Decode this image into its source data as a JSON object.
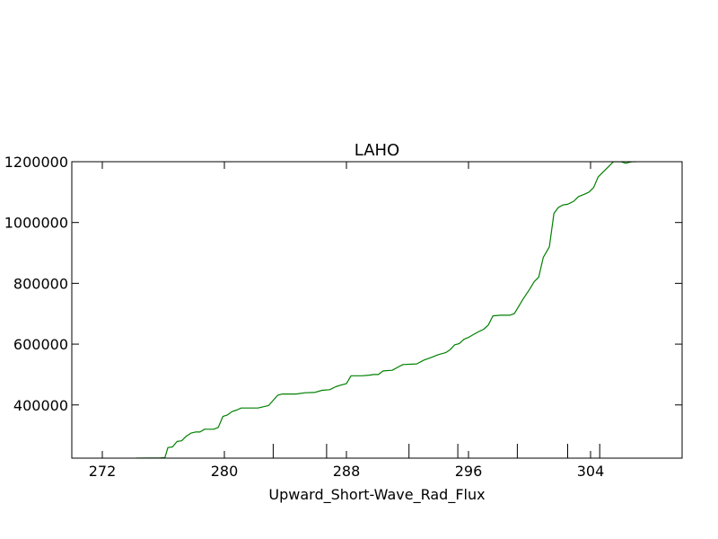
{
  "chart_data": {
    "type": "line",
    "title": "LAHO",
    "xlabel": "Upward_Short-Wave_Rad_Flux",
    "ylabel": "",
    "xlim": [
      270,
      310
    ],
    "ylim": [
      225000,
      1200000
    ],
    "x_ticks": [
      272,
      280,
      288,
      296,
      304
    ],
    "x_tick_labels": [
      "272",
      "280",
      "288",
      "296",
      "304"
    ],
    "x_minor_ticks": [
      283.2,
      286.7,
      292.1,
      295.3,
      299.2,
      302.5,
      304.6
    ],
    "y_ticks": [
      400000,
      600000,
      800000,
      1000000,
      1200000
    ],
    "y_tick_labels": [
      "400000",
      "600000",
      "800000",
      "1000000",
      "1200000"
    ],
    "grid": false,
    "series": [
      {
        "color": "#008000",
        "points": [
          [
            274.2,
            225000
          ],
          [
            275.0,
            225500
          ],
          [
            275.8,
            226000
          ],
          [
            276.1,
            226500
          ],
          [
            276.3,
            260000
          ],
          [
            276.6,
            262000
          ],
          [
            276.9,
            280000
          ],
          [
            277.2,
            282000
          ],
          [
            277.5,
            297000
          ],
          [
            277.8,
            307000
          ],
          [
            278.1,
            311000
          ],
          [
            278.4,
            311000
          ],
          [
            278.7,
            320000
          ],
          [
            279.3,
            320000
          ],
          [
            279.6,
            326000
          ],
          [
            279.9,
            362000
          ],
          [
            280.2,
            367000
          ],
          [
            280.5,
            378000
          ],
          [
            280.8,
            383000
          ],
          [
            281.1,
            390000
          ],
          [
            281.7,
            390000
          ],
          [
            282.2,
            390000
          ],
          [
            282.9,
            398000
          ],
          [
            283.5,
            432000
          ],
          [
            283.8,
            436000
          ],
          [
            284.7,
            436000
          ],
          [
            285.3,
            440000
          ],
          [
            285.9,
            441000
          ],
          [
            286.4,
            448000
          ],
          [
            286.9,
            450000
          ],
          [
            287.3,
            460000
          ],
          [
            287.6,
            465000
          ],
          [
            288.0,
            470000
          ],
          [
            288.3,
            496000
          ],
          [
            289.0,
            496000
          ],
          [
            289.5,
            498000
          ],
          [
            289.8,
            500000
          ],
          [
            290.1,
            500000
          ],
          [
            290.4,
            512000
          ],
          [
            291.0,
            514000
          ],
          [
            291.4,
            525000
          ],
          [
            291.7,
            533000
          ],
          [
            292.6,
            535000
          ],
          [
            293.1,
            548000
          ],
          [
            293.5,
            555000
          ],
          [
            294.0,
            565000
          ],
          [
            294.5,
            572000
          ],
          [
            294.8,
            582000
          ],
          [
            295.1,
            598000
          ],
          [
            295.4,
            602000
          ],
          [
            295.7,
            616000
          ],
          [
            296.0,
            622000
          ],
          [
            296.3,
            631000
          ],
          [
            296.7,
            642000
          ],
          [
            297.0,
            649000
          ],
          [
            297.3,
            663000
          ],
          [
            297.6,
            693000
          ],
          [
            298.1,
            695000
          ],
          [
            298.7,
            695000
          ],
          [
            299.0,
            700000
          ],
          [
            299.6,
            750000
          ],
          [
            300.0,
            780000
          ],
          [
            300.3,
            805000
          ],
          [
            300.6,
            820000
          ],
          [
            300.9,
            885000
          ],
          [
            301.3,
            920000
          ],
          [
            301.6,
            1030000
          ],
          [
            301.9,
            1050000
          ],
          [
            302.2,
            1058000
          ],
          [
            302.5,
            1060000
          ],
          [
            302.9,
            1070000
          ],
          [
            303.2,
            1085000
          ],
          [
            303.6,
            1093000
          ],
          [
            303.9,
            1100000
          ],
          [
            304.2,
            1115000
          ],
          [
            304.5,
            1150000
          ],
          [
            304.8,
            1165000
          ],
          [
            305.1,
            1180000
          ],
          [
            305.5,
            1200000
          ],
          [
            306.0,
            1200000
          ],
          [
            306.3,
            1195000
          ],
          [
            306.7,
            1200000
          ],
          [
            307.0,
            1200000
          ]
        ]
      }
    ]
  }
}
